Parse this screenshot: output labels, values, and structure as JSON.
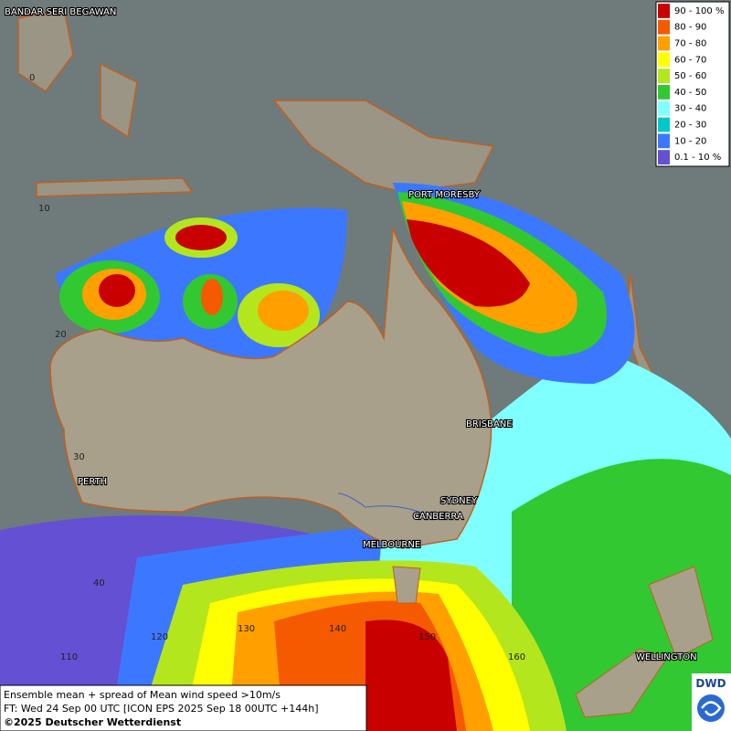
{
  "map": {
    "cities": [
      "BANDAR SERI BEGAWAN",
      "PORT MORESBY",
      "BRISBANE",
      "PERTH",
      "SYDNEY",
      "CANBERRA",
      "MELBOURNE",
      "WELLINGTON"
    ],
    "lat_labels": [
      "0",
      "10",
      "20",
      "30",
      "40"
    ],
    "lon_labels": [
      "110",
      "120",
      "130",
      "140",
      "150",
      "160"
    ]
  },
  "legend": {
    "items": [
      {
        "label": "90 - 100 %",
        "color": "#c80000"
      },
      {
        "label": "80 - 90",
        "color": "#f55a00"
      },
      {
        "label": "70 - 80",
        "color": "#ffa000"
      },
      {
        "label": "60 - 70",
        "color": "#ffff00"
      },
      {
        "label": "50 - 60",
        "color": "#b4e61e"
      },
      {
        "label": "40 - 50",
        "color": "#32c832"
      },
      {
        "label": "30 - 40",
        "color": "#80ffff"
      },
      {
        "label": "20 - 30",
        "color": "#00c8c8"
      },
      {
        "label": "10 - 20",
        "color": "#3c78ff"
      },
      {
        "label": "0.1 - 10 %",
        "color": "#6450d2"
      }
    ]
  },
  "footer": {
    "lines": [
      "Ensemble mean + spread of Mean wind speed >10m/s",
      "FT: Wed 24 Sep 00 UTC [ICON EPS 2025 Sep 18 00UTC +144h]",
      "©2025 Deutscher Wetterdienst"
    ]
  },
  "logo": {
    "text": "DWD"
  }
}
